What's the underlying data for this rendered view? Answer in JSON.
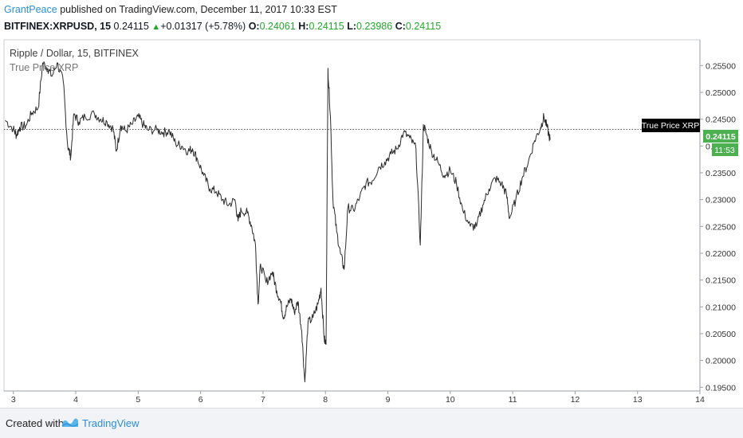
{
  "header": {
    "author": "GrantPeace",
    "published": " published on TradingView.com, December 11, 2017 10:33 EST"
  },
  "symbol_bar": {
    "symbol": "BITFINEX:XRPUSD, 15",
    "last": "0.24115",
    "change": "+0.01317 (+5.78%)",
    "open_label": "O:",
    "open": "0.24061",
    "high_label": "H:",
    "high": "0.24115",
    "low_label": "L:",
    "low": "0.23986",
    "close_label": "C:",
    "close": "0.24115"
  },
  "legend": {
    "title": "Ripple / Dollar, 15, BITFINEX",
    "indicator": "True Price XRP"
  },
  "price_tags": {
    "indicator_tag": "True Price XRP",
    "last_price": "0.24115",
    "countdown": "11:53"
  },
  "footer": {
    "created_with": "Created with",
    "brand": "TradingView"
  },
  "colors": {
    "line": "#2b2b2b",
    "up": "#21a82a",
    "brand": "#2a8fd5",
    "price_tag_bg": "#4caf50",
    "indicator_tag_bg": "#000000"
  },
  "chart_data": {
    "type": "line",
    "title": "Ripple / Dollar, 15, BITFINEX",
    "x_ticks": [
      "3",
      "4",
      "5",
      "6",
      "7",
      "8",
      "9",
      "10",
      "11",
      "12",
      "13",
      "14"
    ],
    "y_ticks": [
      "0.25500",
      "0.25000",
      "0.24500",
      "0.24000",
      "0.23500",
      "0.23000",
      "0.22500",
      "0.22000",
      "0.21500",
      "0.21000",
      "0.20500",
      "0.20000",
      "0.19500"
    ],
    "ylim": [
      0.1943,
      0.2598
    ],
    "xlim": [
      2.85,
      14.0
    ],
    "horizontal_line": {
      "label": "True Price XRP",
      "value": 0.2431
    },
    "last_price": 0.24115,
    "grid": false,
    "series": [
      {
        "values": [
          [
            2.87,
            0.2448
          ],
          [
            3.0,
            0.2432
          ],
          [
            3.05,
            0.242
          ],
          [
            3.1,
            0.2435
          ],
          [
            3.2,
            0.2438
          ],
          [
            3.3,
            0.2462
          ],
          [
            3.4,
            0.2472
          ],
          [
            3.47,
            0.2555
          ],
          [
            3.55,
            0.2545
          ],
          [
            3.62,
            0.253
          ],
          [
            3.7,
            0.2555
          ],
          [
            3.8,
            0.252
          ],
          [
            3.87,
            0.24
          ],
          [
            3.92,
            0.238
          ],
          [
            3.97,
            0.246
          ],
          [
            4.05,
            0.2445
          ],
          [
            4.15,
            0.2455
          ],
          [
            4.3,
            0.246
          ],
          [
            4.4,
            0.245
          ],
          [
            4.5,
            0.2445
          ],
          [
            4.6,
            0.2432
          ],
          [
            4.65,
            0.239
          ],
          [
            4.72,
            0.2438
          ],
          [
            4.8,
            0.2428
          ],
          [
            4.9,
            0.244
          ],
          [
            5.0,
            0.2455
          ],
          [
            5.08,
            0.244
          ],
          [
            5.15,
            0.243
          ],
          [
            5.3,
            0.243
          ],
          [
            5.4,
            0.2425
          ],
          [
            5.5,
            0.2428
          ],
          [
            5.6,
            0.2405
          ],
          [
            5.7,
            0.24
          ],
          [
            5.8,
            0.239
          ],
          [
            5.87,
            0.2395
          ],
          [
            5.95,
            0.2375
          ],
          [
            6.05,
            0.2345
          ],
          [
            6.15,
            0.232
          ],
          [
            6.25,
            0.2315
          ],
          [
            6.35,
            0.23
          ],
          [
            6.45,
            0.229
          ],
          [
            6.55,
            0.23
          ],
          [
            6.6,
            0.226
          ],
          [
            6.65,
            0.228
          ],
          [
            6.75,
            0.2275
          ],
          [
            6.82,
            0.225
          ],
          [
            6.88,
            0.2215
          ],
          [
            6.92,
            0.2105
          ],
          [
            6.96,
            0.218
          ],
          [
            7.05,
            0.2145
          ],
          [
            7.15,
            0.2165
          ],
          [
            7.22,
            0.213
          ],
          [
            7.28,
            0.211
          ],
          [
            7.33,
            0.208
          ],
          [
            7.38,
            0.21
          ],
          [
            7.45,
            0.2115
          ],
          [
            7.5,
            0.209
          ],
          [
            7.56,
            0.211
          ],
          [
            7.62,
            0.2055
          ],
          [
            7.67,
            0.196
          ],
          [
            7.72,
            0.207
          ],
          [
            7.8,
            0.208
          ],
          [
            7.88,
            0.2105
          ],
          [
            7.93,
            0.2135
          ],
          [
            7.98,
            0.204
          ],
          [
            8.01,
            0.203
          ],
          [
            8.04,
            0.2545
          ],
          [
            8.08,
            0.2455
          ],
          [
            8.12,
            0.23
          ],
          [
            8.18,
            0.224
          ],
          [
            8.24,
            0.22
          ],
          [
            8.3,
            0.217
          ],
          [
            8.36,
            0.2285
          ],
          [
            8.45,
            0.228
          ],
          [
            8.55,
            0.2305
          ],
          [
            8.65,
            0.233
          ],
          [
            8.75,
            0.2335
          ],
          [
            8.85,
            0.236
          ],
          [
            8.95,
            0.237
          ],
          [
            9.05,
            0.2385
          ],
          [
            9.15,
            0.2395
          ],
          [
            9.25,
            0.2425
          ],
          [
            9.35,
            0.2415
          ],
          [
            9.45,
            0.2395
          ],
          [
            9.52,
            0.2215
          ],
          [
            9.57,
            0.244
          ],
          [
            9.62,
            0.242
          ],
          [
            9.7,
            0.239
          ],
          [
            9.8,
            0.237
          ],
          [
            9.9,
            0.2345
          ],
          [
            10.0,
            0.2355
          ],
          [
            10.1,
            0.233
          ],
          [
            10.2,
            0.228
          ],
          [
            10.32,
            0.225
          ],
          [
            10.42,
            0.225
          ],
          [
            10.52,
            0.229
          ],
          [
            10.62,
            0.232
          ],
          [
            10.72,
            0.234
          ],
          [
            10.82,
            0.233
          ],
          [
            10.9,
            0.231
          ],
          [
            10.95,
            0.2265
          ],
          [
            11.05,
            0.23
          ],
          [
            11.15,
            0.234
          ],
          [
            11.25,
            0.237
          ],
          [
            11.35,
            0.241
          ],
          [
            11.45,
            0.2435
          ],
          [
            11.5,
            0.2455
          ],
          [
            11.55,
            0.2435
          ],
          [
            11.6,
            0.24115
          ]
        ]
      }
    ]
  }
}
